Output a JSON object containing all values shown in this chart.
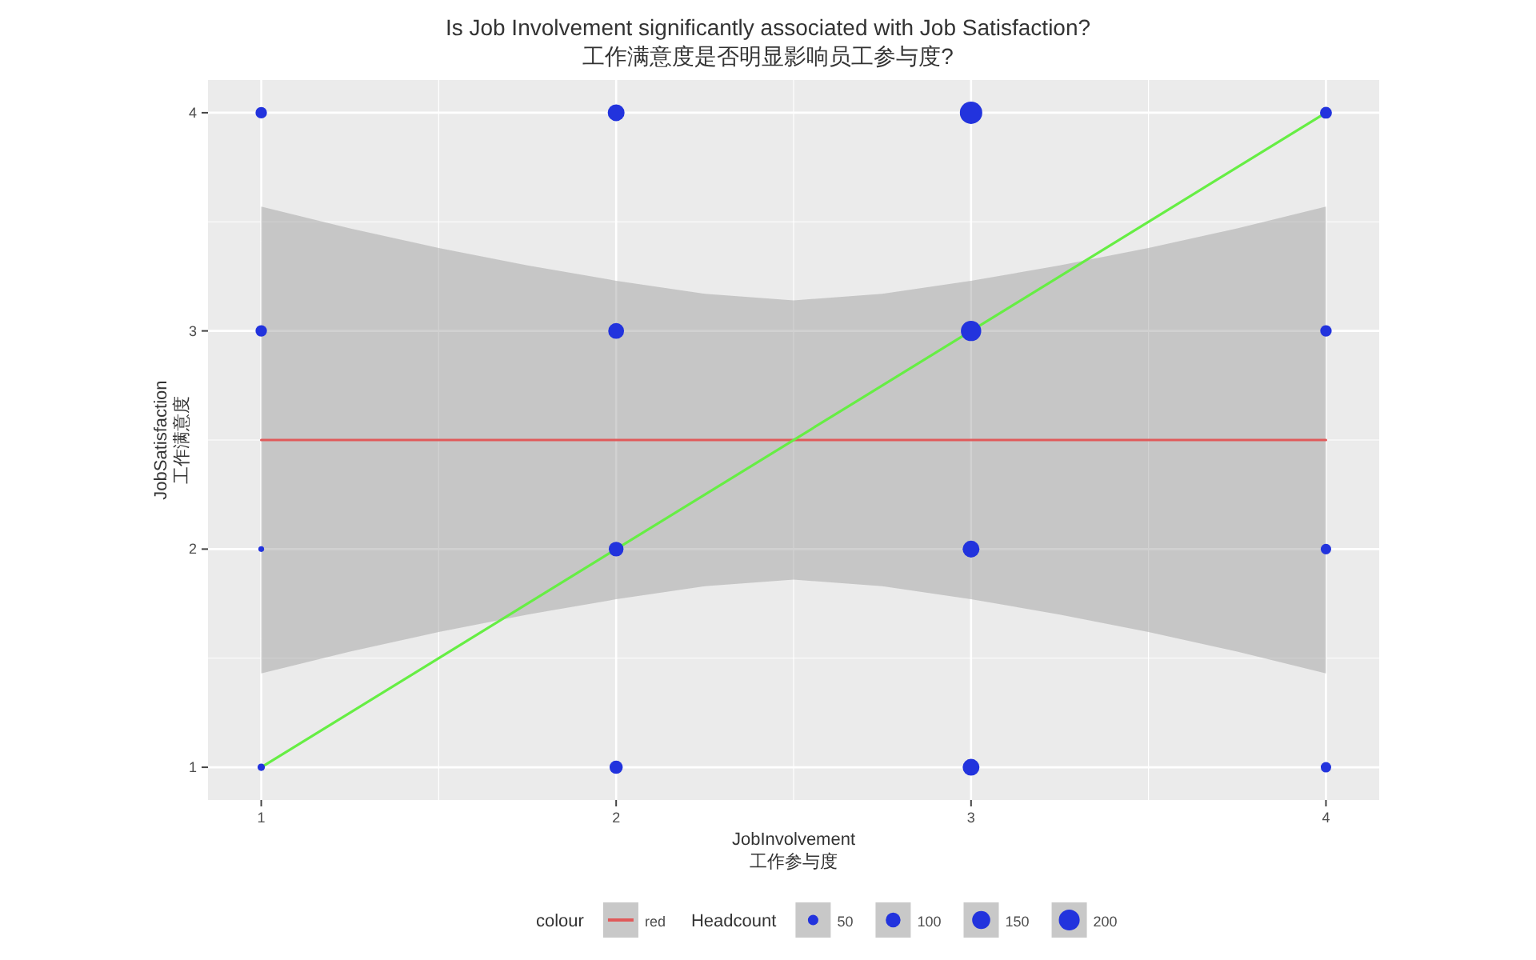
{
  "chart_data": {
    "type": "bubble",
    "title": "Is Job Involvement significantly associated with Job Satisfaction?",
    "subtitle": "工作满意度是否明显影响员工参与度?",
    "xlabel": "JobInvolvement\n工作参与度",
    "ylabel": "JobSatisfaction\n工作满意度",
    "legend_title": "colour",
    "annotations": [
      "Headcount"
    ],
    "xlim": [
      0.85,
      4.15
    ],
    "ylim": [
      0.85,
      4.15
    ],
    "xticks": [
      1,
      2,
      3,
      4
    ],
    "yticks": [
      1,
      2,
      3,
      4
    ],
    "grid": true,
    "legend": "bottom",
    "size_legend": [
      50,
      100,
      150,
      200
    ],
    "series": [
      {
        "type": "line",
        "name": "red",
        "color": "#e05a5a",
        "x": [
          1,
          1.25,
          1.5,
          1.75,
          2,
          2.25,
          2.5,
          2.75,
          3,
          3.25,
          3.5,
          3.75,
          4
        ],
        "values": [
          2.5,
          2.5,
          2.5,
          2.5,
          2.5,
          2.5,
          2.5,
          2.5,
          2.5,
          2.5,
          2.5,
          2.5,
          2.5
        ],
        "lower": [
          1.43,
          1.53,
          1.62,
          1.7,
          1.77,
          1.83,
          1.86,
          1.83,
          1.77,
          1.7,
          1.62,
          1.53,
          1.43
        ],
        "upper": [
          3.57,
          3.47,
          3.38,
          3.3,
          3.23,
          3.17,
          3.14,
          3.17,
          3.23,
          3.3,
          3.38,
          3.47,
          3.57
        ]
      },
      {
        "type": "line",
        "color": "#66ee44",
        "x": [
          1,
          4
        ],
        "values": [
          1,
          4
        ]
      },
      {
        "color": "#2233dd",
        "marker": "circle",
        "x": [
          1,
          2,
          3,
          4,
          1,
          2,
          3,
          4,
          1,
          2,
          3,
          4,
          1,
          2,
          3,
          4
        ],
        "values": [
          4,
          4,
          4,
          4,
          3,
          3,
          3,
          3,
          2,
          2,
          2,
          2,
          1,
          1,
          1,
          1
        ],
        "sizes": [
          60,
          130,
          230,
          65,
          60,
          115,
          190,
          60,
          15,
          100,
          130,
          50,
          25,
          80,
          130,
          50
        ]
      }
    ]
  }
}
